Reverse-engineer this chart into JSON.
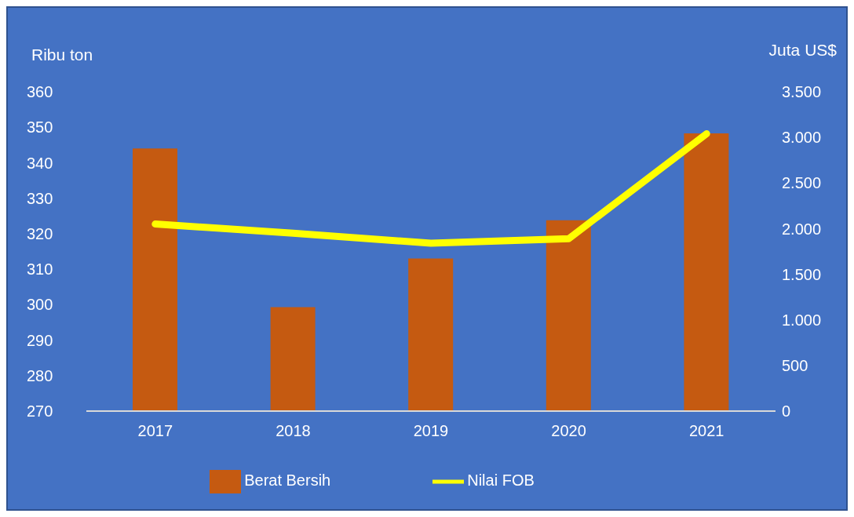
{
  "chart_data": {
    "type": "bar",
    "categories": [
      "2017",
      "2018",
      "2019",
      "2020",
      "2021"
    ],
    "series": [
      {
        "name": "Berat Bersih",
        "color": "#c55a11",
        "values": [
          344,
          299.3,
          313,
          323.8,
          348.3
        ]
      },
      {
        "name": "Nilai FOB",
        "type": "line",
        "axis": "y2",
        "color": "#ffff00",
        "values": [
          2050,
          1950,
          1840,
          1890,
          3040
        ]
      }
    ],
    "ylabel": "Ribu ton",
    "y2label": "Juta US$",
    "ylim": [
      270,
      360
    ],
    "yticks": [
      270,
      280,
      290,
      300,
      310,
      320,
      330,
      340,
      350,
      360
    ],
    "y2lim": [
      0,
      3500
    ],
    "y2ticks": [
      0,
      500,
      {
        "value": 1000,
        "label": "1.000"
      },
      {
        "value": 1500,
        "label": "1.500"
      },
      {
        "value": 2000,
        "label": "2.000"
      },
      {
        "value": 2500,
        "label": "2.500"
      },
      {
        "value": 3000,
        "label": "3.000"
      },
      {
        "value": 3500,
        "label": "3.500"
      }
    ],
    "grid": false,
    "legend": "bottom",
    "marker": "none",
    "line_style": "solid"
  }
}
